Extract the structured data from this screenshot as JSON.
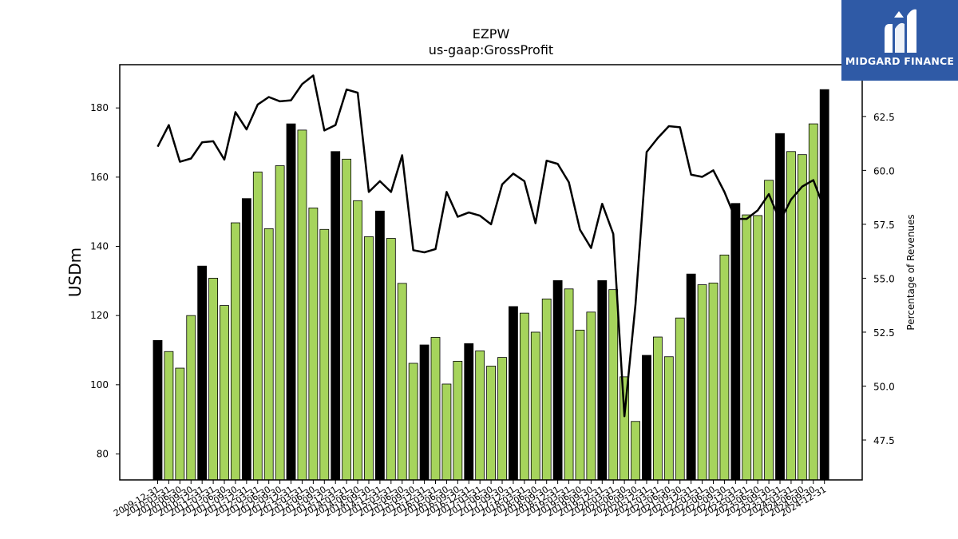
{
  "brand": {
    "name": "MIDGARD FINANCE",
    "logo_icon": "midgard-logo-icon"
  },
  "chart_data": {
    "type": "bar",
    "title": "EZPW",
    "subtitle": "us-gaap:GrossProfit",
    "ylabel": "USDm",
    "y2label": "Percentage of Revenues",
    "ylim": [
      72.5,
      192.5
    ],
    "y2lim": [
      45.65,
      64.9
    ],
    "yticks": [
      80,
      100,
      120,
      140,
      160,
      180
    ],
    "y2ticks": [
      47.5,
      50.0,
      52.5,
      55.0,
      57.5,
      60.0,
      62.5
    ],
    "categories": [
      "2009-12-31",
      "2010-03-31",
      "2010-06-30",
      "2010-09-30",
      "2010-12-31",
      "2011-03-31",
      "2011-06-30",
      "2011-09-30",
      "2011-12-31",
      "2012-03-31",
      "2012-06-30",
      "2012-09-30",
      "2012-12-31",
      "2013-03-31",
      "2013-06-30",
      "2013-09-30",
      "2013-12-31",
      "2014-03-31",
      "2014-06-30",
      "2014-09-30",
      "2014-12-31",
      "2015-03-31",
      "2015-06-30",
      "2015-09-30",
      "2015-12-31",
      "2016-03-31",
      "2016-06-30",
      "2016-09-30",
      "2016-12-31",
      "2017-03-31",
      "2017-06-30",
      "2017-09-30",
      "2017-12-31",
      "2018-03-31",
      "2018-06-30",
      "2018-09-30",
      "2018-12-31",
      "2019-03-31",
      "2019-06-30",
      "2019-09-30",
      "2019-12-31",
      "2020-03-31",
      "2020-06-30",
      "2020-09-30",
      "2020-12-31",
      "2021-03-31",
      "2021-06-30",
      "2021-09-30",
      "2021-12-31",
      "2022-03-31",
      "2022-06-30",
      "2022-09-30",
      "2022-12-31",
      "2023-03-31",
      "2023-06-30",
      "2023-09-30",
      "2023-12-31",
      "2024-03-31",
      "2024-06-30",
      "2024-09-30",
      "2024-12-31"
    ],
    "xtick_labels": [
      "2009-12-31",
      "2010-03-31",
      "2010-06-30",
      "2010-09-30",
      "2010-12-31",
      "2011-03-31",
      "2011-06-30",
      "2011-09-30",
      "2011-12-31",
      "2012-03-31",
      "2012-06-30",
      "2012-09-30",
      "2012-12-31",
      "2013-03-31",
      "2013-06-30",
      "2013-09-30",
      "2013-12-31",
      "2014-03-31",
      "2014-06-30",
      "2014-09-30",
      "2014-12-31",
      "2015-03-31",
      "2015-06-30",
      "2015-09-30",
      "2015-12-31",
      "2016-03-31",
      "2016-06-30",
      "2016-09-30",
      "2016-12-31",
      "2017-03-31",
      "2017-06-30",
      "2017-09-30",
      "2017-12-31",
      "2018-03-31",
      "2018-06-30",
      "2018-09-30",
      "2018-12-31",
      "2019-03-31",
      "2019-06-30",
      "2019-09-30",
      "2019-12-31",
      "2020-03-31",
      "2020-06-30",
      "2020-09-30",
      "2020-12-31",
      "2021-03-31",
      "2021-06-30",
      "2021-09-30",
      "2021-12-31",
      "2022-03-31",
      "2022-06-30",
      "2022-09-30",
      "2022-12-31",
      "2023-03-31",
      "2023-06-30",
      "2023-09-30",
      "2023-12-31",
      "2024-03-31",
      "2024-06-30",
      "2024-09-30",
      "2024-12-31"
    ],
    "bar_values": [
      112.8,
      109.6,
      104.8,
      120.0,
      134.3,
      130.8,
      122.9,
      146.8,
      153.8,
      161.5,
      145.1,
      163.3,
      175.4,
      173.6,
      151.1,
      144.9,
      167.4,
      165.2,
      153.2,
      142.8,
      150.2,
      142.3,
      129.3,
      106.2,
      111.5,
      113.7,
      100.2,
      106.8,
      111.9,
      109.8,
      105.4,
      107.9,
      122.6,
      120.7,
      115.2,
      124.8,
      130.1,
      127.7,
      115.8,
      121.0,
      130.1,
      127.5,
      102.3,
      89.4,
      108.5,
      113.8,
      108.1,
      119.3,
      132.0,
      128.9,
      129.4,
      137.5,
      152.4,
      149.1,
      148.9,
      159.1,
      172.6,
      167.4,
      166.5,
      175.4,
      185.3
    ],
    "bar_colors": {
      "q4": "#000000",
      "other": "#a6d45c",
      "edge": "#000000"
    },
    "line": {
      "values": [
        61.1,
        62.1,
        60.4,
        60.55,
        61.3,
        61.35,
        60.5,
        62.7,
        61.9,
        63.05,
        63.4,
        63.2,
        63.25,
        64.0,
        64.4,
        61.85,
        62.1,
        63.75,
        63.6,
        59.0,
        59.5,
        59.0,
        60.7,
        56.3,
        56.2,
        56.35,
        59.0,
        57.85,
        58.05,
        57.9,
        57.5,
        59.35,
        59.85,
        59.5,
        57.55,
        60.45,
        60.3,
        59.45,
        57.25,
        56.4,
        58.45,
        57.05,
        48.6,
        53.8,
        60.85,
        61.5,
        62.05,
        62.0,
        59.8,
        59.7,
        60.0,
        59.0,
        57.75,
        57.75,
        58.15,
        58.9,
        57.65,
        58.65,
        59.25,
        59.55,
        58.2
      ],
      "color": "#000000"
    },
    "grid": false,
    "legend": "none"
  }
}
